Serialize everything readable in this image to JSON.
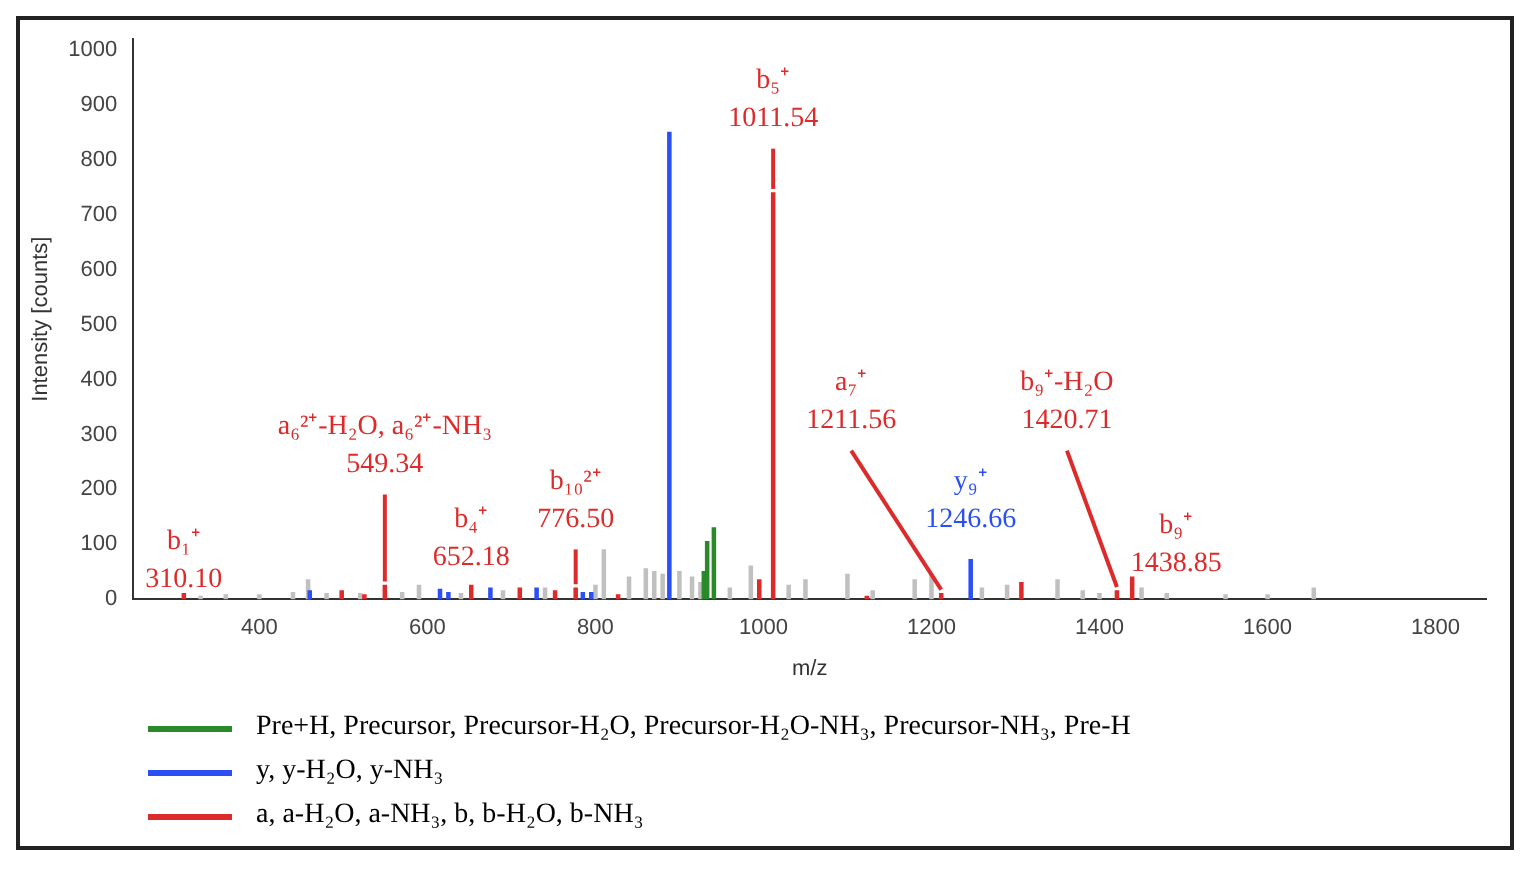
{
  "chart_data": {
    "type": "bar",
    "xlabel": "m/z",
    "ylabel": "Intensity [counts]",
    "xlim": [
      250,
      1860
    ],
    "xticks": [
      400,
      600,
      800,
      1000,
      1200,
      1400,
      1600,
      1800
    ],
    "ylim": [
      0,
      1020
    ],
    "yticks": [
      0,
      100,
      200,
      300,
      400,
      500,
      600,
      700,
      800,
      900,
      1000
    ],
    "grid": false,
    "legend": "bottom",
    "series": [
      {
        "name": "Pre+H, Precursor, Precursor-H₂O, Precursor-H₂O-NH₃, Precursor-NH₃, Pre-H",
        "color": "#2a8a2a",
        "x": [
          929,
          933,
          941
        ],
        "values": [
          50,
          105,
          130
        ]
      },
      {
        "name": "y, y-H₂O, y-NH₃",
        "color": "#2a4ff5",
        "x": [
          460,
          615,
          625,
          675,
          730,
          785,
          795,
          888,
          1246.66
        ],
        "values": [
          15,
          18,
          12,
          20,
          20,
          12,
          12,
          850,
          72
        ]
      },
      {
        "name": "a, a-H₂O, a-NH₃, b, b-H₂O, b-NH₃",
        "color": "#dd2a2a",
        "x": [
          310.1,
          498,
          525,
          549.34,
          652.18,
          710,
          752,
          776.5,
          827,
          995,
          1011.54,
          1123,
          1211.56,
          1307,
          1420.71,
          1438.85
        ],
        "values": [
          10,
          15,
          8,
          25,
          25,
          20,
          15,
          20,
          8,
          35,
          740,
          5,
          10,
          30,
          15,
          40
        ]
      },
      {
        "color": "#c0c0c0",
        "x": [
          330,
          360,
          400,
          440,
          458,
          480,
          520,
          570,
          590,
          640,
          690,
          740,
          800,
          810,
          840,
          860,
          870,
          880,
          900,
          915,
          925,
          960,
          985,
          1030,
          1050,
          1100,
          1130,
          1180,
          1200,
          1260,
          1290,
          1350,
          1380,
          1400,
          1450,
          1480,
          1550,
          1600,
          1655
        ],
        "values": [
          5,
          8,
          8,
          12,
          35,
          10,
          10,
          12,
          25,
          10,
          15,
          20,
          25,
          90,
          40,
          55,
          50,
          45,
          50,
          40,
          30,
          20,
          60,
          25,
          35,
          45,
          15,
          35,
          45,
          20,
          25,
          35,
          15,
          10,
          20,
          10,
          8,
          8,
          20
        ]
      }
    ],
    "annotations": [
      {
        "text": "b₁⁺\n310.10",
        "x": 310.1,
        "y": 10
      },
      {
        "text": "a₆²⁺-H₂O, a₆²⁺-NH₃\n549.34",
        "x": 549.34,
        "y": 25
      },
      {
        "text": "b₄⁺\n652.18",
        "x": 652.18,
        "y": 25
      },
      {
        "text": "b₁₀²⁺\n776.50",
        "x": 776.5,
        "y": 20
      },
      {
        "text": "b₅⁺\n1011.54",
        "x": 1011.54,
        "y": 740
      },
      {
        "text": "a₇⁺\n1211.56",
        "x": 1211.56,
        "y": 10
      },
      {
        "text": "y₉⁺\n1246.66",
        "x": 1246.66,
        "y": 72
      },
      {
        "text": "b₉⁺-H₂O\n1420.71",
        "x": 1420.71,
        "y": 15
      },
      {
        "text": "b₉⁺\n1438.85",
        "x": 1438.85,
        "y": 40
      }
    ]
  }
}
